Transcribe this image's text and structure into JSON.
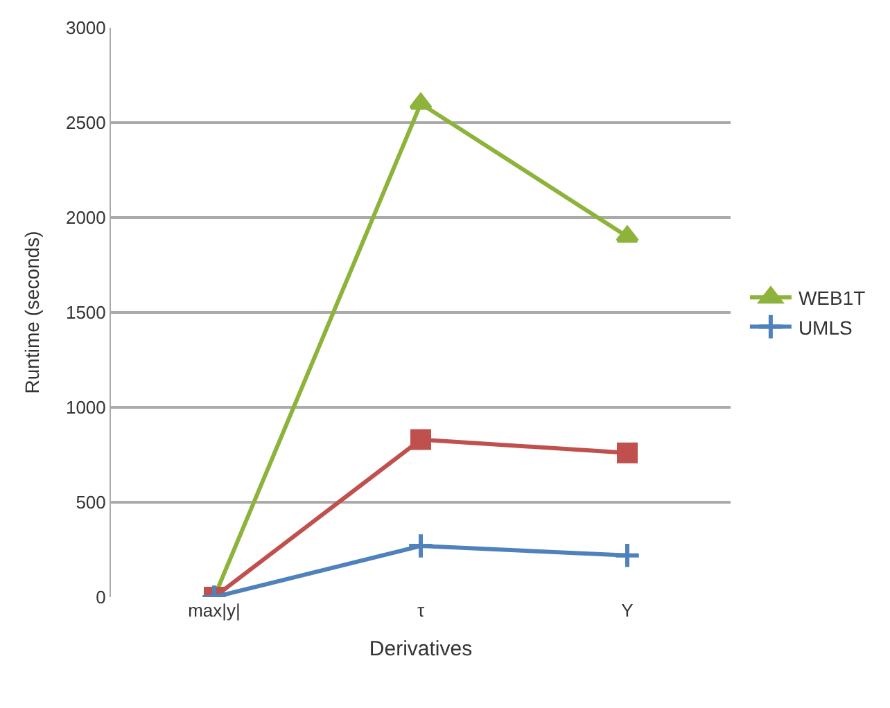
{
  "chart_data": {
    "type": "line",
    "xlabel": "Derivatives",
    "ylabel": "Runtime (seconds)",
    "categories": [
      "max|y|",
      "τ",
      "Υ"
    ],
    "series": [
      {
        "name": "WEB1T",
        "color": "#8db33a",
        "values": [
          0,
          2600,
          1900
        ],
        "marker": "triangle"
      },
      {
        "color": "#c0504d",
        "values": [
          0,
          830,
          760
        ],
        "marker": "square"
      },
      {
        "name": "UMLS",
        "color": "#4f81bd",
        "values": [
          0,
          270,
          220
        ],
        "marker": "cross"
      }
    ],
    "ylim": [
      0,
      3000
    ],
    "yticks": [
      0,
      500,
      1000,
      1500,
      2000,
      2500,
      3000
    ],
    "grid": "y",
    "legend": "right"
  }
}
